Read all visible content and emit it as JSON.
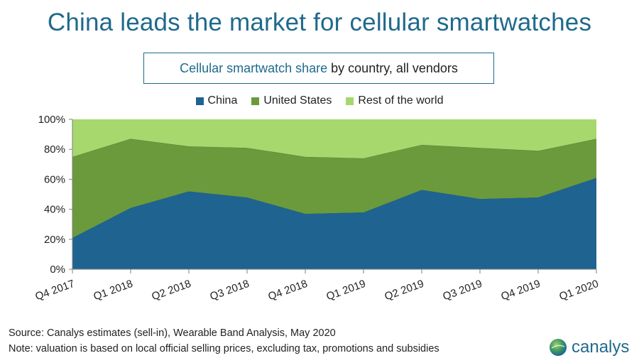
{
  "header": {
    "title": "China leads the market for cellular smartwatches",
    "subtitle_highlight": "Cellular smartwatch share",
    "subtitle_rest": " by country, all vendors"
  },
  "colors": {
    "title": "#1f6a8c",
    "china": "#1f6391",
    "united_states": "#6b9a3c",
    "rest_of_world": "#a6d86e"
  },
  "chart_data": {
    "type": "area",
    "stacked": true,
    "categories": [
      "Q4 2017",
      "Q1 2018",
      "Q2 2018",
      "Q3 2018",
      "Q4 2018",
      "Q1 2019",
      "Q2 2019",
      "Q3 2019",
      "Q4 2019",
      "Q1 2020"
    ],
    "series": [
      {
        "name": "China",
        "color": "#1f6391",
        "values": [
          21,
          41,
          52,
          48,
          37,
          38,
          53,
          47,
          48,
          61
        ]
      },
      {
        "name": "United States",
        "color": "#6b9a3c",
        "values": [
          54,
          46,
          30,
          33,
          38,
          36,
          30,
          34,
          31,
          26
        ]
      },
      {
        "name": "Rest of the world",
        "color": "#a6d86e",
        "values": [
          25,
          13,
          18,
          19,
          25,
          26,
          17,
          19,
          21,
          13
        ]
      }
    ],
    "yticks": [
      "0%",
      "20%",
      "40%",
      "60%",
      "80%",
      "100%"
    ],
    "ylim": [
      0,
      100
    ],
    "legend_position": "top-center",
    "grid": false
  },
  "footer": {
    "source": "Source: Canalys estimates (sell-in), Wearable Band Analysis, May 2020",
    "note": "Note: valuation is based on local official selling prices, excluding tax, promotions and subsidies"
  },
  "logo": {
    "icon": "globe-icon",
    "text": "canalys"
  }
}
